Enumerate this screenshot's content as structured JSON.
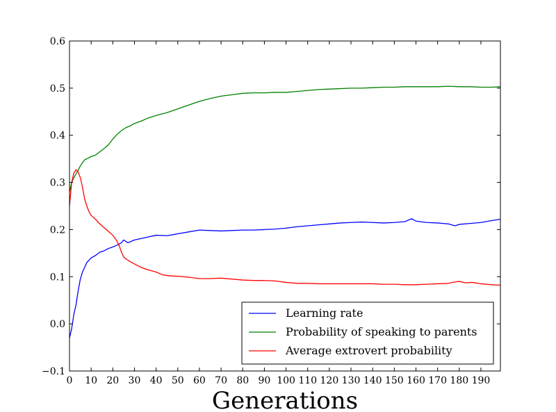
{
  "chart_data": {
    "type": "line",
    "xlabel": "Generations",
    "ylabel": "",
    "xlim": [
      0,
      199
    ],
    "ylim": [
      -0.1,
      0.6
    ],
    "xticks": [
      0,
      10,
      20,
      30,
      40,
      50,
      60,
      70,
      80,
      90,
      100,
      110,
      120,
      130,
      140,
      150,
      160,
      170,
      180,
      190
    ],
    "yticks": [
      -0.1,
      0.0,
      0.1,
      0.2,
      0.3,
      0.4,
      0.5,
      0.6
    ],
    "ytick_labels": [
      "−0.1",
      "0.0",
      "0.1",
      "0.2",
      "0.3",
      "0.4",
      "0.5",
      "0.6"
    ],
    "legend_placement": "lower-right",
    "grid": false,
    "series": [
      {
        "name": "Learning rate",
        "color": "#0000ff",
        "points": [
          [
            0,
            -0.03
          ],
          [
            1,
            -0.01
          ],
          [
            2,
            0.02
          ],
          [
            3,
            0.04
          ],
          [
            4,
            0.07
          ],
          [
            5,
            0.095
          ],
          [
            6,
            0.11
          ],
          [
            7,
            0.12
          ],
          [
            8,
            0.13
          ],
          [
            10,
            0.14
          ],
          [
            12,
            0.145
          ],
          [
            14,
            0.152
          ],
          [
            16,
            0.155
          ],
          [
            18,
            0.16
          ],
          [
            20,
            0.163
          ],
          [
            22,
            0.167
          ],
          [
            24,
            0.172
          ],
          [
            25,
            0.178
          ],
          [
            26,
            0.175
          ],
          [
            27,
            0.172
          ],
          [
            30,
            0.178
          ],
          [
            35,
            0.183
          ],
          [
            40,
            0.188
          ],
          [
            45,
            0.187
          ],
          [
            50,
            0.191
          ],
          [
            55,
            0.195
          ],
          [
            60,
            0.199
          ],
          [
            65,
            0.198
          ],
          [
            70,
            0.197
          ],
          [
            75,
            0.198
          ],
          [
            80,
            0.199
          ],
          [
            85,
            0.199
          ],
          [
            90,
            0.2
          ],
          [
            95,
            0.201
          ],
          [
            100,
            0.203
          ],
          [
            105,
            0.206
          ],
          [
            110,
            0.208
          ],
          [
            115,
            0.21
          ],
          [
            120,
            0.212
          ],
          [
            125,
            0.214
          ],
          [
            130,
            0.215
          ],
          [
            135,
            0.216
          ],
          [
            140,
            0.215
          ],
          [
            145,
            0.214
          ],
          [
            150,
            0.215
          ],
          [
            155,
            0.217
          ],
          [
            158,
            0.223
          ],
          [
            160,
            0.218
          ],
          [
            165,
            0.215
          ],
          [
            170,
            0.214
          ],
          [
            175,
            0.212
          ],
          [
            178,
            0.208
          ],
          [
            180,
            0.211
          ],
          [
            185,
            0.213
          ],
          [
            190,
            0.215
          ],
          [
            195,
            0.219
          ],
          [
            199,
            0.222
          ]
        ]
      },
      {
        "name": "Probability of speaking to parents",
        "color": "#008000",
        "points": [
          [
            0,
            0.28
          ],
          [
            1,
            0.3
          ],
          [
            2,
            0.31
          ],
          [
            3,
            0.318
          ],
          [
            4,
            0.326
          ],
          [
            5,
            0.335
          ],
          [
            6,
            0.342
          ],
          [
            7,
            0.348
          ],
          [
            8,
            0.35
          ],
          [
            10,
            0.355
          ],
          [
            12,
            0.358
          ],
          [
            14,
            0.365
          ],
          [
            16,
            0.372
          ],
          [
            18,
            0.38
          ],
          [
            20,
            0.392
          ],
          [
            22,
            0.402
          ],
          [
            24,
            0.41
          ],
          [
            26,
            0.416
          ],
          [
            28,
            0.42
          ],
          [
            30,
            0.425
          ],
          [
            33,
            0.43
          ],
          [
            36,
            0.436
          ],
          [
            40,
            0.442
          ],
          [
            45,
            0.448
          ],
          [
            50,
            0.456
          ],
          [
            55,
            0.464
          ],
          [
            60,
            0.472
          ],
          [
            65,
            0.478
          ],
          [
            70,
            0.483
          ],
          [
            75,
            0.486
          ],
          [
            80,
            0.489
          ],
          [
            85,
            0.49
          ],
          [
            90,
            0.49
          ],
          [
            95,
            0.491
          ],
          [
            100,
            0.491
          ],
          [
            105,
            0.493
          ],
          [
            110,
            0.495
          ],
          [
            115,
            0.497
          ],
          [
            120,
            0.498
          ],
          [
            125,
            0.499
          ],
          [
            130,
            0.5
          ],
          [
            135,
            0.5
          ],
          [
            140,
            0.501
          ],
          [
            145,
            0.502
          ],
          [
            150,
            0.502
          ],
          [
            155,
            0.503
          ],
          [
            160,
            0.503
          ],
          [
            165,
            0.503
          ],
          [
            170,
            0.503
          ],
          [
            175,
            0.504
          ],
          [
            180,
            0.503
          ],
          [
            185,
            0.503
          ],
          [
            190,
            0.502
          ],
          [
            195,
            0.502
          ],
          [
            199,
            0.503
          ]
        ]
      },
      {
        "name": "Average extrovert probability",
        "color": "#ff0000",
        "points": [
          [
            0,
            0.25
          ],
          [
            1,
            0.3
          ],
          [
            2,
            0.32
          ],
          [
            3,
            0.327
          ],
          [
            4,
            0.322
          ],
          [
            5,
            0.31
          ],
          [
            6,
            0.29
          ],
          [
            7,
            0.265
          ],
          [
            8,
            0.25
          ],
          [
            9,
            0.238
          ],
          [
            10,
            0.23
          ],
          [
            12,
            0.222
          ],
          [
            14,
            0.212
          ],
          [
            16,
            0.204
          ],
          [
            18,
            0.196
          ],
          [
            20,
            0.188
          ],
          [
            22,
            0.175
          ],
          [
            23,
            0.165
          ],
          [
            24,
            0.152
          ],
          [
            25,
            0.142
          ],
          [
            26,
            0.138
          ],
          [
            28,
            0.132
          ],
          [
            30,
            0.127
          ],
          [
            33,
            0.12
          ],
          [
            36,
            0.115
          ],
          [
            40,
            0.11
          ],
          [
            43,
            0.104
          ],
          [
            46,
            0.102
          ],
          [
            50,
            0.101
          ],
          [
            55,
            0.099
          ],
          [
            60,
            0.096
          ],
          [
            65,
            0.096
          ],
          [
            70,
            0.097
          ],
          [
            75,
            0.095
          ],
          [
            80,
            0.093
          ],
          [
            85,
            0.092
          ],
          [
            90,
            0.092
          ],
          [
            95,
            0.091
          ],
          [
            100,
            0.088
          ],
          [
            105,
            0.086
          ],
          [
            110,
            0.086
          ],
          [
            115,
            0.085
          ],
          [
            120,
            0.085
          ],
          [
            125,
            0.085
          ],
          [
            130,
            0.085
          ],
          [
            135,
            0.085
          ],
          [
            140,
            0.085
          ],
          [
            145,
            0.084
          ],
          [
            150,
            0.084
          ],
          [
            155,
            0.083
          ],
          [
            160,
            0.083
          ],
          [
            165,
            0.084
          ],
          [
            170,
            0.085
          ],
          [
            175,
            0.086
          ],
          [
            178,
            0.089
          ],
          [
            180,
            0.09
          ],
          [
            183,
            0.087
          ],
          [
            186,
            0.088
          ],
          [
            190,
            0.085
          ],
          [
            195,
            0.083
          ],
          [
            199,
            0.082
          ]
        ]
      }
    ]
  }
}
